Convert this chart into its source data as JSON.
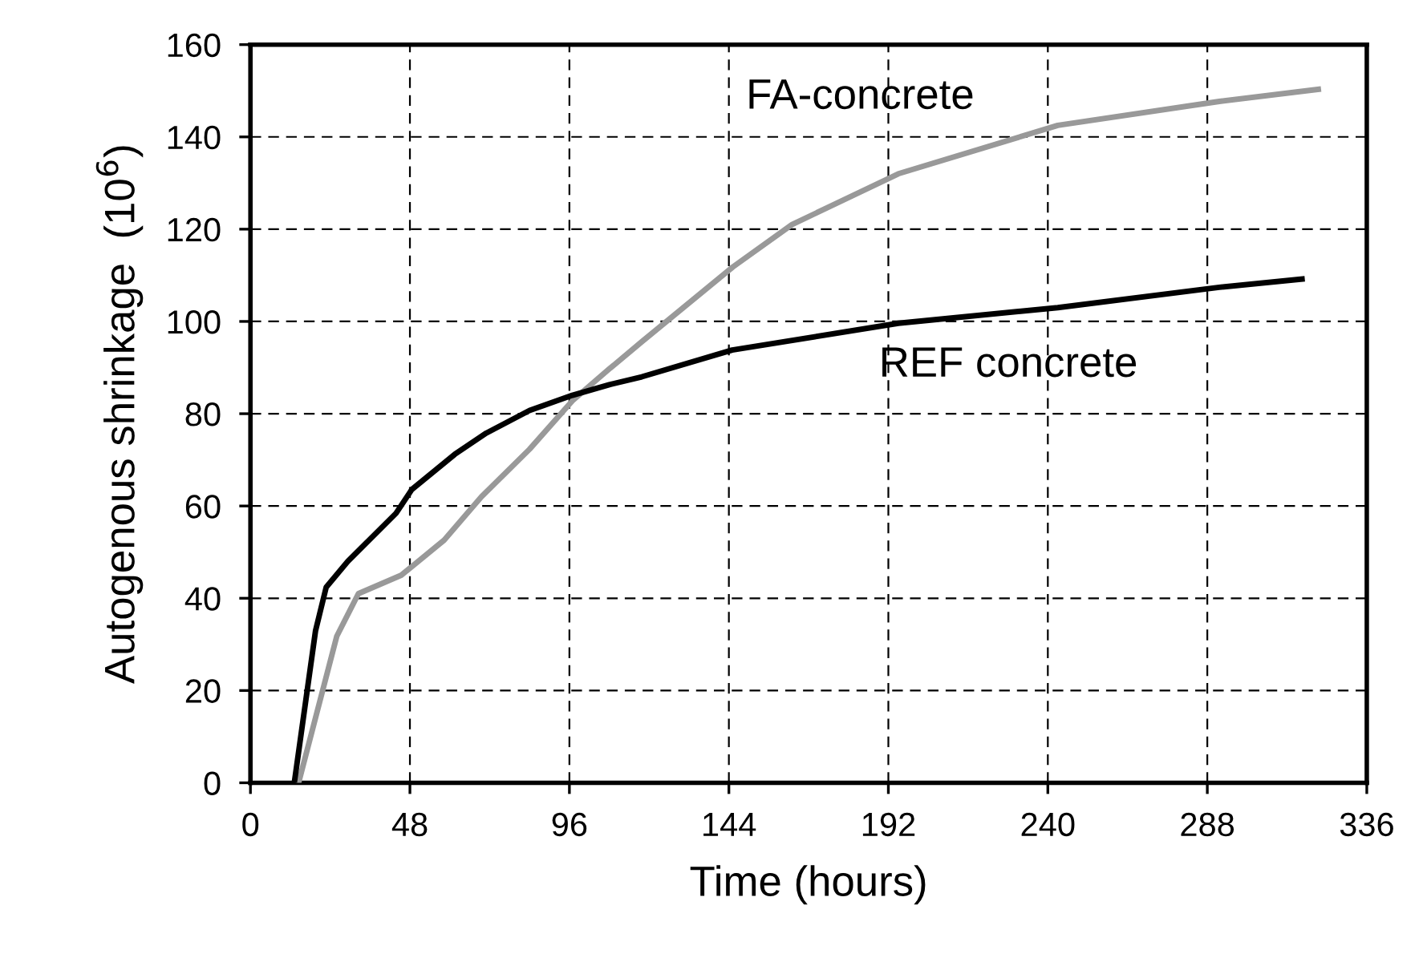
{
  "chart_data": {
    "type": "line",
    "xlabel": "Time (hours)",
    "ylabel": "Autogenous shrinkage  (10$^{6}$)",
    "xlim": [
      0,
      336
    ],
    "xticks": [
      0,
      48,
      96,
      144,
      192,
      240,
      288,
      336
    ],
    "ylim": [
      0,
      160
    ],
    "yticks": [
      0,
      20,
      40,
      60,
      80,
      100,
      120,
      140,
      160
    ],
    "grid": true,
    "line_style": "solid",
    "marker": "none",
    "series": [
      {
        "name": "FA-concrete",
        "color": "#999999",
        "x": [
          14.5,
          26,
          32.5,
          45.4,
          58.3,
          69.5,
          84,
          96.9,
          108,
          117.8,
          145.2,
          163,
          195,
          243,
          291.6,
          321.4
        ],
        "values": [
          0,
          31.8,
          41,
          45,
          52.6,
          62,
          72.3,
          82.8,
          89.7,
          95.6,
          111.8,
          121,
          132,
          142.5,
          147.7,
          150.3
        ]
      },
      {
        "name": "REF concrete",
        "color": "#000000",
        "x": [
          13.2,
          19.6,
          22.8,
          29.3,
          43.8,
          48.6,
          61.5,
          71,
          84,
          96.9,
          108,
          117.8,
          145,
          195,
          243,
          291.6,
          316.5
        ],
        "values": [
          0,
          33,
          42.4,
          48,
          58.4,
          63.6,
          71.2,
          75.8,
          80.7,
          84,
          86.3,
          88,
          93.8,
          99.6,
          103,
          107.4,
          109.2
        ]
      }
    ]
  }
}
